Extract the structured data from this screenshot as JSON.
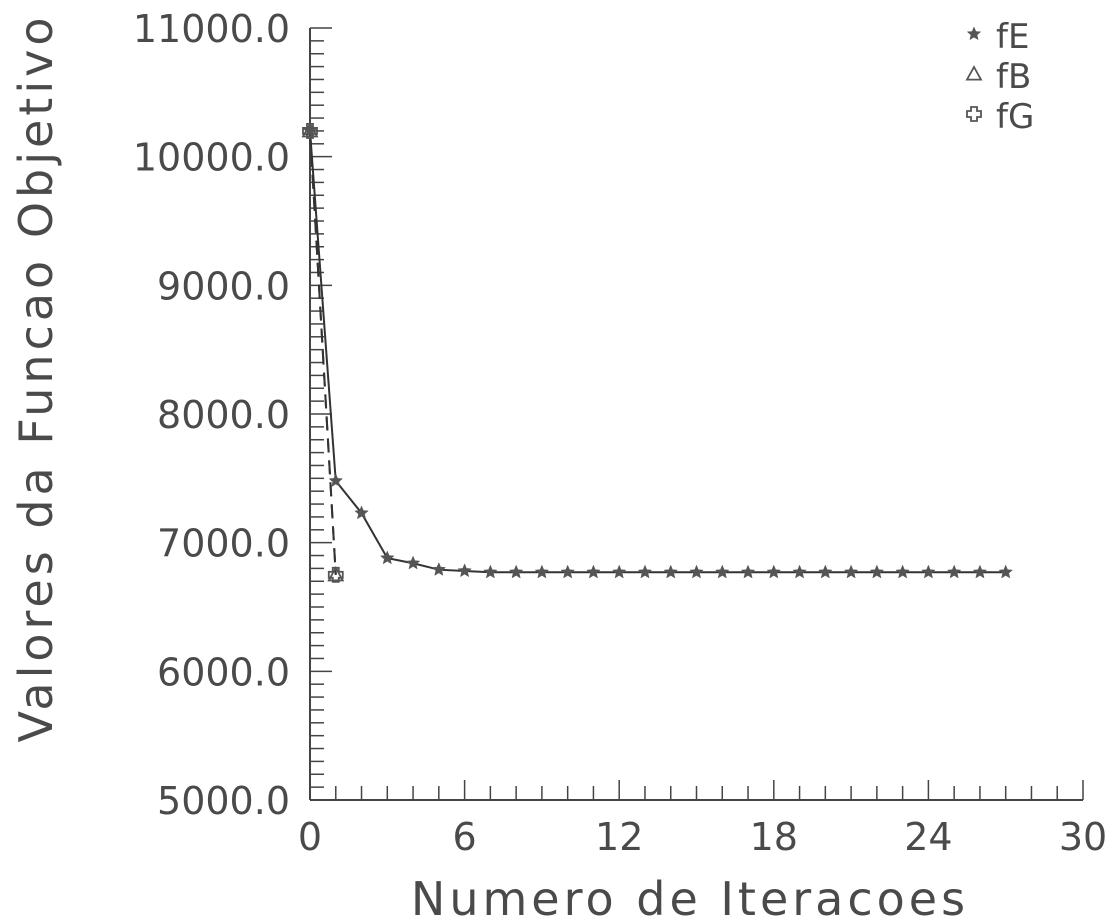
{
  "chart_data": {
    "type": "line",
    "title": "",
    "xlabel": "Numero de Iteracoes",
    "ylabel": "Valores da Funcao Objetivo",
    "xlim": [
      0,
      30
    ],
    "ylim": [
      5000,
      11000
    ],
    "x_ticks": [
      "0",
      "6",
      "12",
      "18",
      "24",
      "30"
    ],
    "y_ticks": [
      "5000.0",
      "6000.0",
      "7000.0",
      "8000.0",
      "9000.0",
      "10000.0",
      "11000.0"
    ],
    "grid": false,
    "legend_position": "top-right",
    "series": [
      {
        "name": "fE",
        "marker": "star",
        "line": "solid",
        "x": [
          0,
          1,
          2,
          3,
          4,
          5,
          6,
          7,
          8,
          9,
          10,
          11,
          12,
          13,
          14,
          15,
          16,
          17,
          18,
          19,
          20,
          21,
          22,
          23,
          24,
          25,
          26,
          27
        ],
        "y": [
          10200,
          7480,
          7230,
          6880,
          6840,
          6790,
          6780,
          6770,
          6770,
          6770,
          6770,
          6770,
          6770,
          6770,
          6770,
          6770,
          6770,
          6770,
          6770,
          6770,
          6770,
          6770,
          6770,
          6770,
          6770,
          6770,
          6770,
          6770
        ]
      },
      {
        "name": "fB",
        "marker": "triangle",
        "line": "dashed",
        "x": [
          0,
          1
        ],
        "y": [
          10200,
          6750
        ]
      },
      {
        "name": "fG",
        "marker": "plus",
        "line": "dashed",
        "x": [
          0,
          1
        ],
        "y": [
          10200,
          6750
        ]
      }
    ],
    "colors": {
      "line": "#333333",
      "marker": "#555555",
      "text": "#4a4a4a"
    }
  }
}
